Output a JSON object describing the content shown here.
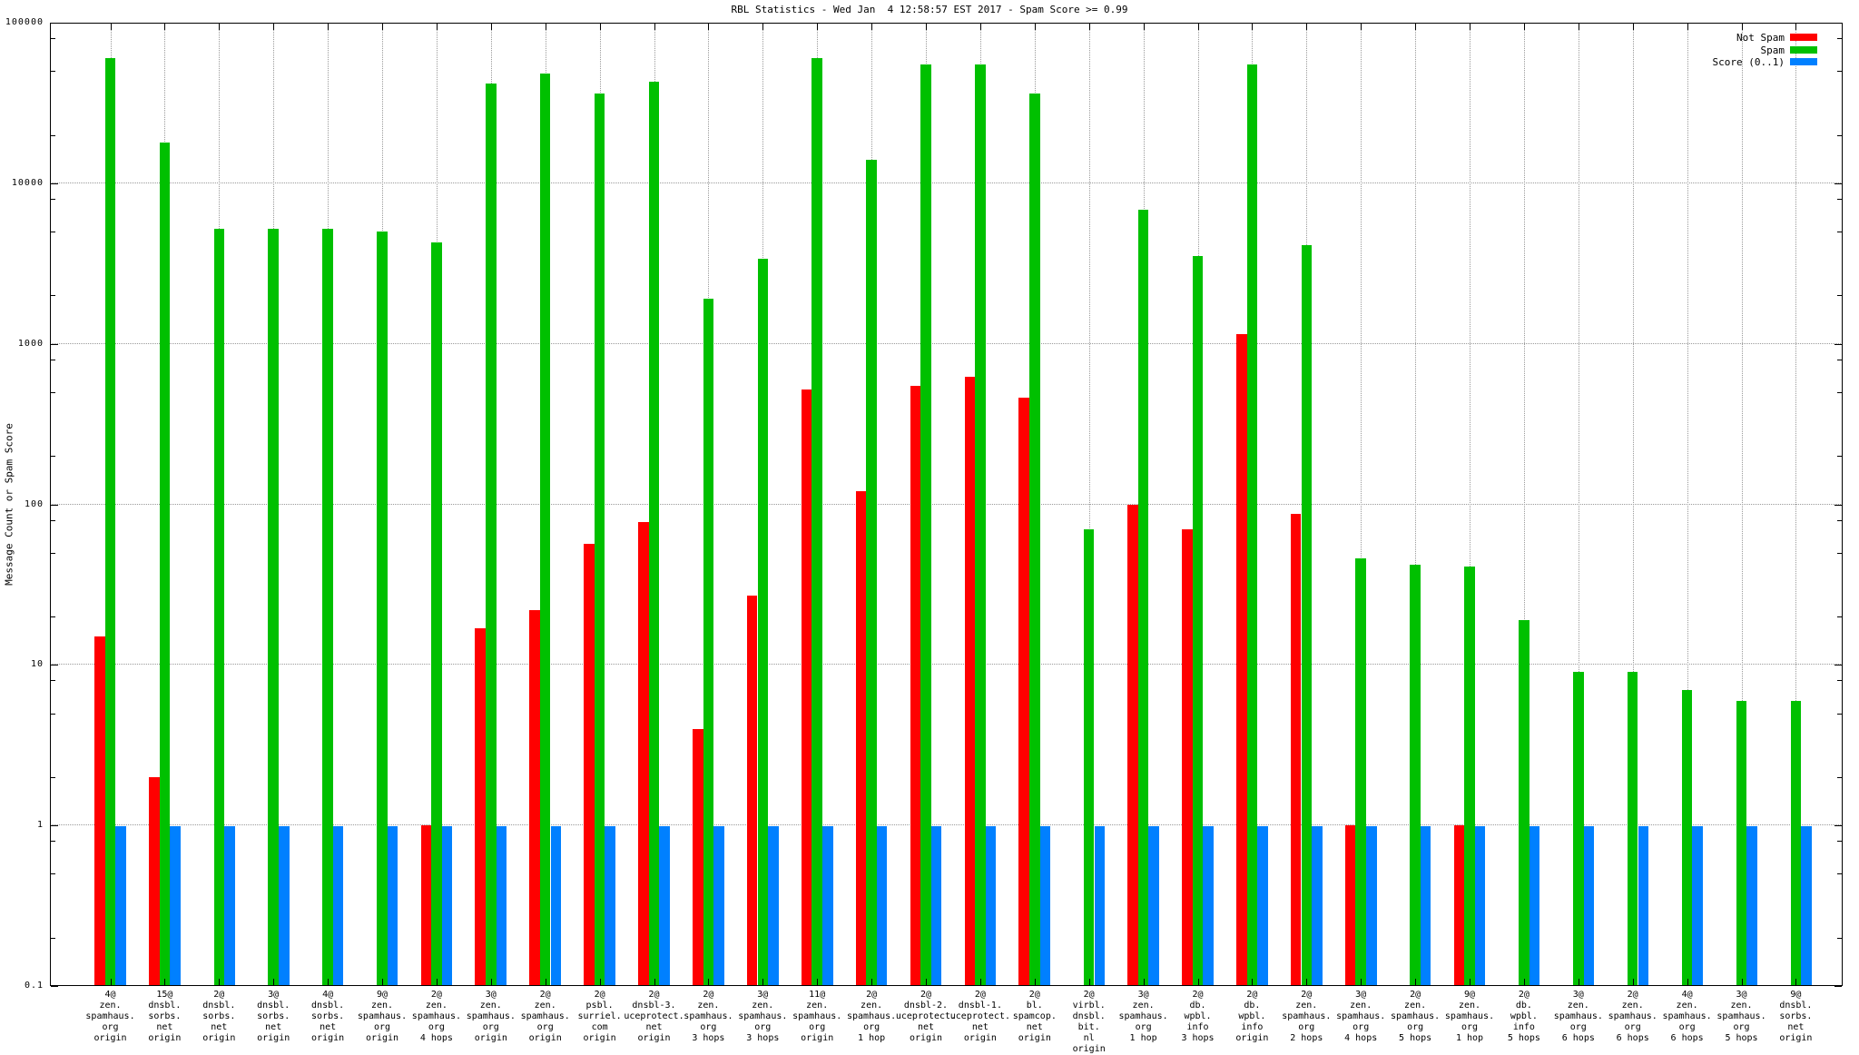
{
  "title": "RBL Statistics - Wed Jan  4 12:58:57 EST 2017 - Spam Score >= 0.99",
  "ylabel": "Message Count or Spam Score",
  "legend": [
    {
      "label": "Not Spam",
      "color": "#ff0000"
    },
    {
      "label": "Spam",
      "color": "#00c000"
    },
    {
      "label": "Score (0..1)",
      "color": "#0080ff"
    }
  ],
  "chart_data": {
    "type": "bar",
    "yscale": "log",
    "ylim": [
      0.1,
      100000
    ],
    "ytick_labels": [
      "100000",
      "10000",
      "1000",
      "100",
      "10",
      "1",
      "0.1"
    ],
    "grid": true,
    "legend_position": "top-right-inside",
    "title": "RBL Statistics - Wed Jan  4 12:58:57 EST 2017 - Spam Score >= 0.99",
    "xlabel": "",
    "ylabel": "Message Count or Spam Score",
    "categories": [
      "4@\nzen.\nspamhaus.\norg\norigin",
      "15@\ndnsbl.\nsorbs.\nnet\norigin",
      "2@\ndnsbl.\nsorbs.\nnet\norigin",
      "3@\ndnsbl.\nsorbs.\nnet\norigin",
      "4@\ndnsbl.\nsorbs.\nnet\norigin",
      "9@\nzen.\nspamhaus.\norg\norigin",
      "2@\nzen.\nspamhaus.\norg\n4 hops",
      "3@\nzen.\nspamhaus.\norg\norigin",
      "2@\nzen.\nspamhaus.\norg\norigin",
      "2@\npsbl.\nsurriel.\ncom\norigin",
      "2@\ndnsbl-3.\nuceprotect.\nnet\norigin",
      "2@\nzen.\nspamhaus.\norg\n3 hops",
      "3@\nzen.\nspamhaus.\norg\n3 hops",
      "11@\nzen.\nspamhaus.\norg\norigin",
      "2@\nzen.\nspamhaus.\norg\n1 hop",
      "2@\ndnsbl-2.\nuceprotect.\nnet\norigin",
      "2@\ndnsbl-1.\nuceprotect.\nnet\norigin",
      "2@\nbl.\nspamcop.\nnet\norigin",
      "2@\nvirbl.\ndnsbl.\nbit.\nnl\norigin",
      "3@\nzen.\nspamhaus.\norg\n1 hop",
      "2@\ndb.\nwpbl.\ninfo\n3 hops",
      "2@\ndb.\nwpbl.\ninfo\norigin",
      "2@\nzen.\nspamhaus.\norg\n2 hops",
      "3@\nzen.\nspamhaus.\norg\n4 hops",
      "2@\nzen.\nspamhaus.\norg\n5 hops",
      "9@\nzen.\nspamhaus.\norg\n1 hop",
      "2@\ndb.\nwpbl.\ninfo\n5 hops",
      "3@\nzen.\nspamhaus.\norg\n6 hops",
      "2@\nzen.\nspamhaus.\norg\n6 hops",
      "4@\nzen.\nspamhaus.\norg\n6 hops",
      "3@\nzen.\nspamhaus.\norg\n5 hops",
      "9@\ndnsbl.\nsorbs.\nnet\norigin"
    ],
    "series": [
      {
        "name": "Not Spam",
        "color": "#ff0000",
        "values": [
          15,
          2,
          0,
          0,
          0,
          0,
          1,
          17,
          22,
          57,
          78,
          4,
          27,
          520,
          120,
          550,
          620,
          460,
          0,
          100,
          70,
          1150,
          87,
          1,
          0,
          1,
          0,
          0,
          0,
          0,
          0,
          0
        ]
      },
      {
        "name": "Spam",
        "color": "#00c000",
        "values": [
          60000,
          18000,
          5200,
          5200,
          5200,
          5000,
          4300,
          42000,
          48000,
          36000,
          43000,
          1900,
          3400,
          60000,
          14000,
          55000,
          55000,
          36000,
          70,
          6800,
          3500,
          55000,
          4100,
          46,
          42,
          41,
          19,
          9,
          9,
          7,
          6,
          6
        ]
      },
      {
        "name": "Score (0..1)",
        "color": "#0080ff",
        "values": [
          0.99,
          0.99,
          0.99,
          0.99,
          0.99,
          0.99,
          0.99,
          0.99,
          0.99,
          0.99,
          0.99,
          0.99,
          0.99,
          0.99,
          0.99,
          0.99,
          0.99,
          0.99,
          0.99,
          0.99,
          0.99,
          0.99,
          0.99,
          0.99,
          0.99,
          0.99,
          0.99,
          0.99,
          0.99,
          0.99,
          0.99,
          0.99
        ]
      }
    ]
  }
}
